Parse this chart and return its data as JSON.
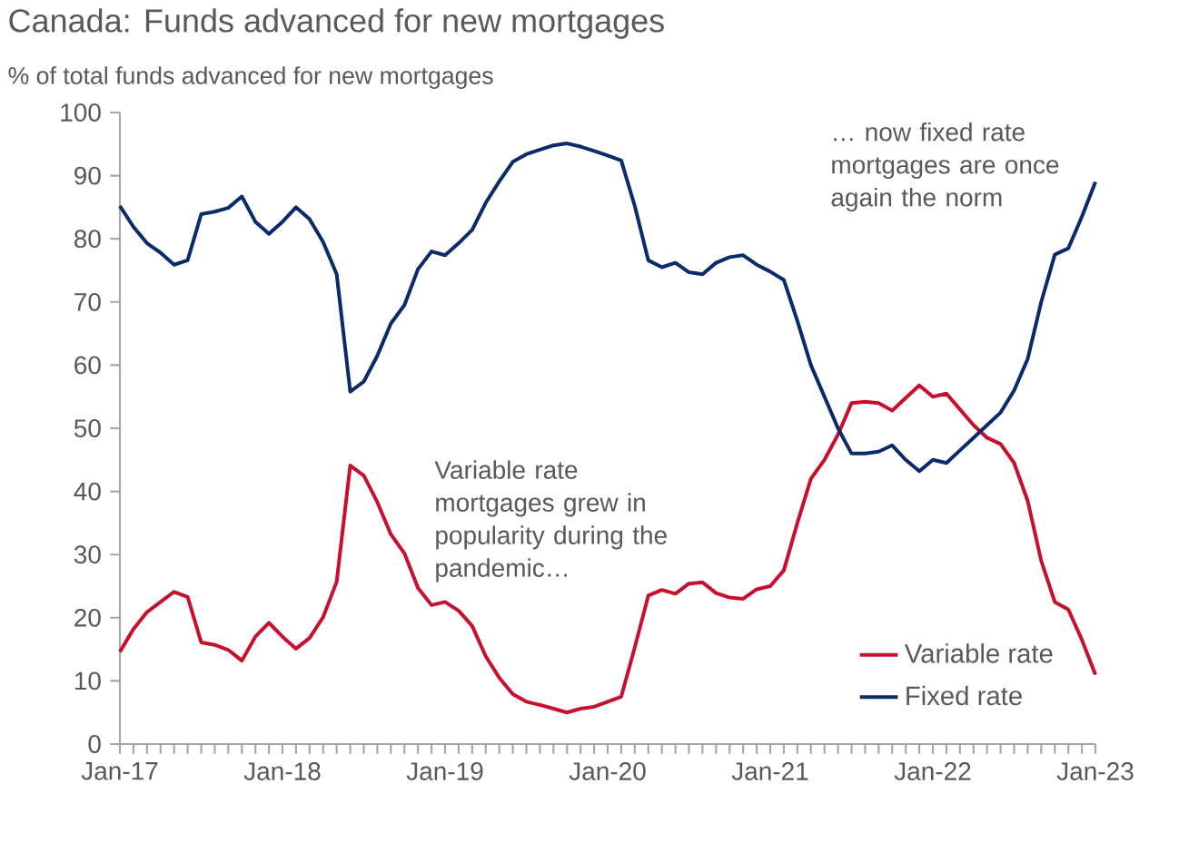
{
  "chart_data": {
    "type": "line",
    "title": "Canada: Funds advanced for new mortgages",
    "subtitle": "% of total funds advanced for new mortgages",
    "x": [
      "2017-01",
      "2017-02",
      "2017-03",
      "2017-04",
      "2017-05",
      "2017-06",
      "2017-07",
      "2017-08",
      "2017-09",
      "2017-10",
      "2017-11",
      "2017-12",
      "2018-01",
      "2018-02",
      "2018-03",
      "2018-04",
      "2018-05",
      "2018-06",
      "2018-07",
      "2018-08",
      "2018-09",
      "2018-10",
      "2018-11",
      "2018-12",
      "2019-01",
      "2019-02",
      "2019-03",
      "2019-04",
      "2019-05",
      "2019-06",
      "2019-07",
      "2019-08",
      "2019-09",
      "2019-10",
      "2019-11",
      "2019-12",
      "2020-01",
      "2020-02",
      "2020-03",
      "2020-04",
      "2020-05",
      "2020-06",
      "2020-07",
      "2020-08",
      "2020-09",
      "2020-10",
      "2020-11",
      "2020-12",
      "2021-01",
      "2021-02",
      "2021-03",
      "2021-04",
      "2021-05",
      "2021-06",
      "2021-07",
      "2021-08",
      "2021-09",
      "2021-10",
      "2021-11",
      "2021-12",
      "2022-01",
      "2022-02",
      "2022-03",
      "2022-04",
      "2022-05",
      "2022-06",
      "2022-07",
      "2022-08",
      "2022-09",
      "2022-10",
      "2022-11",
      "2022-12",
      "2023-01"
    ],
    "series": [
      {
        "name": "Variable rate",
        "color": "#c8102e",
        "values": [
          14.6,
          18.2,
          20.9,
          22.5,
          24.1,
          23.3,
          16.1,
          15.7,
          14.9,
          13.2,
          17,
          19.2,
          17,
          15.1,
          16.8,
          20.1,
          25.7,
          44.1,
          42.5,
          38.3,
          33.2,
          30.2,
          24.7,
          22,
          22.5,
          21.1,
          18.7,
          13.9,
          10.5,
          7.9,
          6.7,
          6.2,
          5.6,
          5.0,
          5.6,
          5.9,
          6.7,
          7.5,
          15.3,
          23.5,
          24.4,
          23.8,
          25.4,
          25.6,
          23.9,
          23.2,
          23,
          24.5,
          25,
          27.5,
          35,
          42,
          45,
          49,
          54,
          54.2,
          54,
          52.8,
          54.8,
          56.8,
          55,
          55.5,
          53,
          50.5,
          48.5,
          47.5,
          44.5,
          38.5,
          29,
          22.5,
          21.3,
          16.5,
          11
        ]
      },
      {
        "name": "Fixed rate",
        "color": "#0b2a6b",
        "values": [
          85.2,
          81.9,
          79.3,
          77.8,
          75.9,
          76.6,
          83.9,
          84.3,
          84.9,
          86.7,
          82.7,
          80.8,
          82.7,
          85,
          83.1,
          79.5,
          74.4,
          55.8,
          57.4,
          61.5,
          66.6,
          69.5,
          75.2,
          78,
          77.4,
          79.3,
          81.4,
          85.7,
          89.1,
          92.2,
          93.4,
          94.1,
          94.8,
          95.1,
          94.6,
          93.9,
          93.2,
          92.4,
          85.2,
          76.6,
          75.5,
          76.2,
          74.7,
          74.4,
          76.2,
          77.1,
          77.4,
          75.9,
          74.8,
          73.5,
          67,
          60,
          55,
          50,
          46,
          46,
          46.3,
          47.3,
          45,
          43.2,
          45,
          44.5,
          46.5,
          48.5,
          50.5,
          52.5,
          56,
          61,
          70,
          77.5,
          78.5,
          83.5,
          89
        ]
      }
    ],
    "xlim": [
      "2017-01",
      "2023-01"
    ],
    "xticks": [
      {
        "value": "2017-01",
        "label": "Jan-17"
      },
      {
        "value": "2018-01",
        "label": "Jan-18"
      },
      {
        "value": "2019-01",
        "label": "Jan-19"
      },
      {
        "value": "2020-01",
        "label": "Jan-20"
      },
      {
        "value": "2021-01",
        "label": "Jan-21"
      },
      {
        "value": "2022-01",
        "label": "Jan-22"
      },
      {
        "value": "2023-01",
        "label": "Jan-23"
      }
    ],
    "ylim": [
      0,
      100
    ],
    "yticks": [
      0,
      10,
      20,
      30,
      40,
      50,
      60,
      70,
      80,
      90,
      100
    ],
    "legend": "bottom right",
    "line_style": "solid",
    "annotations": [
      "Variable rate mortgages grew in popularity during the pandemic…",
      "… now fixed rate mortgages are once again the norm"
    ]
  }
}
